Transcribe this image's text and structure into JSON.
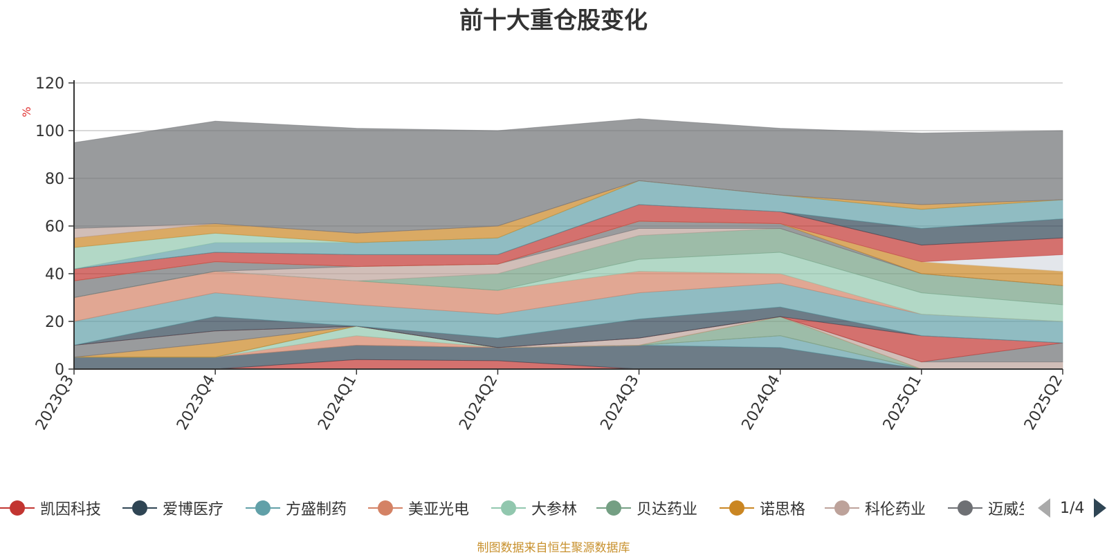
{
  "title": "前十大重仓股变化",
  "footnote": "制图数据来自恒生聚源数据库",
  "pager": {
    "text": "1/4"
  },
  "legend": [
    {
      "label": "凯因科技",
      "color": "#c23531"
    },
    {
      "label": "爱博医疗",
      "color": "#2f4554"
    },
    {
      "label": "方盛制药",
      "color": "#61a0a8"
    },
    {
      "label": "美亚光电",
      "color": "#d48265"
    },
    {
      "label": "大参林",
      "color": "#91c7ae"
    },
    {
      "label": "贝达药业",
      "color": "#749f83"
    },
    {
      "label": "诺思格",
      "color": "#ca8622"
    },
    {
      "label": "科伦药业",
      "color": "#bda29a"
    },
    {
      "label": "迈威生物",
      "color": "#6e7074"
    }
  ],
  "chart_data": {
    "type": "area",
    "stacked": true,
    "title": "前十大重仓股变化",
    "ylabel": "%",
    "ylim": [
      0,
      120
    ],
    "yticks": [
      "0",
      "20",
      "40",
      "60",
      "80",
      "100",
      "120"
    ],
    "categories": [
      "2023Q3",
      "2023Q4",
      "2024Q1",
      "2024Q2",
      "2024Q3",
      "2024Q4",
      "2025Q1",
      "2025Q2"
    ],
    "grid": true,
    "series": [
      {
        "name": "凯因科技",
        "color": "#c23531",
        "values": [
          0,
          0,
          4,
          3.5,
          0,
          0,
          0,
          0
        ]
      },
      {
        "name": "爱博医疗",
        "color": "#2f4554",
        "values": [
          5,
          5,
          6,
          5.5,
          10,
          9,
          0,
          0
        ]
      },
      {
        "name": "方盛制药",
        "color": "#61a0a8",
        "values": [
          0,
          0,
          0,
          0,
          0,
          5,
          0,
          0
        ]
      },
      {
        "name": "美亚光电",
        "color": "#d48265",
        "values": [
          0,
          0,
          4,
          0,
          0,
          0,
          0,
          0
        ]
      },
      {
        "name": "大参林",
        "color": "#91c7ae",
        "values": [
          0,
          0,
          4,
          0,
          0,
          0,
          0,
          0
        ]
      },
      {
        "name": "贝达药业",
        "color": "#749f83",
        "values": [
          0,
          0,
          0,
          0,
          0,
          8,
          0,
          0
        ]
      },
      {
        "name": "诺思格",
        "color": "#ca8622",
        "values": [
          0,
          6,
          0,
          0,
          0,
          0,
          0,
          0
        ]
      },
      {
        "name": "科伦药业",
        "color": "#bda29a",
        "values": [
          0,
          0,
          0,
          0,
          3,
          0,
          3,
          3
        ]
      },
      {
        "name": "迈威生物",
        "color": "#6e7074",
        "values": [
          5,
          5,
          0,
          0,
          0,
          0,
          0,
          8
        ]
      },
      {
        "name": "",
        "color": "#c23531",
        "values": [
          0,
          0,
          0,
          0,
          0,
          0,
          11,
          0
        ]
      },
      {
        "name": "",
        "color": "#2f4554",
        "values": [
          0,
          6,
          0,
          4,
          8,
          4,
          0,
          0
        ]
      },
      {
        "name": "",
        "color": "#61a0a8",
        "values": [
          10,
          10,
          9,
          10,
          11,
          10,
          9,
          9
        ]
      },
      {
        "name": "",
        "color": "#d48265",
        "values": [
          10,
          9,
          10,
          10,
          9,
          4,
          0,
          0
        ]
      },
      {
        "name": "",
        "color": "#91c7ae",
        "values": [
          0,
          0,
          0,
          0,
          5,
          9,
          9,
          7
        ]
      },
      {
        "name": "",
        "color": "#749f83",
        "values": [
          0,
          0,
          0,
          7,
          10,
          10,
          8,
          8
        ]
      },
      {
        "name": "",
        "color": "#bda29a",
        "values": [
          0,
          0,
          6,
          4,
          3,
          0,
          0,
          0
        ]
      },
      {
        "name": "",
        "color": "#6e7074",
        "values": [
          7,
          4,
          0,
          0,
          3,
          2,
          0,
          0
        ]
      },
      {
        "name": "",
        "color": "#ca8622",
        "values": [
          0,
          0,
          0,
          0,
          0,
          0,
          5,
          6
        ]
      },
      {
        "name": "",
        "color": "#d7dce2",
        "values": [
          0,
          0,
          0,
          0,
          0,
          0,
          0,
          7
        ]
      },
      {
        "name": "",
        "color": "#c23531",
        "values": [
          5,
          4,
          5,
          4,
          7,
          5,
          7,
          7
        ]
      },
      {
        "name": "",
        "color": "#2f4554",
        "values": [
          0,
          0,
          0,
          0,
          0,
          0,
          7,
          8
        ]
      },
      {
        "name": "",
        "color": "#61a0a8",
        "values": [
          0,
          4,
          5,
          7,
          10,
          7,
          8,
          8
        ]
      },
      {
        "name": "",
        "color": "#91c7ae",
        "values": [
          9,
          4,
          0,
          0,
          0,
          0,
          0,
          0
        ]
      },
      {
        "name": "",
        "color": "#ca8622",
        "values": [
          4,
          4,
          4,
          5,
          0,
          0,
          2,
          0
        ]
      },
      {
        "name": "",
        "color": "#bda29a",
        "values": [
          4,
          0,
          0,
          0,
          0,
          0,
          0,
          0
        ]
      },
      {
        "name": "",
        "color": "#6e7074",
        "values": [
          36,
          43,
          44,
          40,
          26,
          28,
          30,
          29
        ]
      }
    ]
  }
}
